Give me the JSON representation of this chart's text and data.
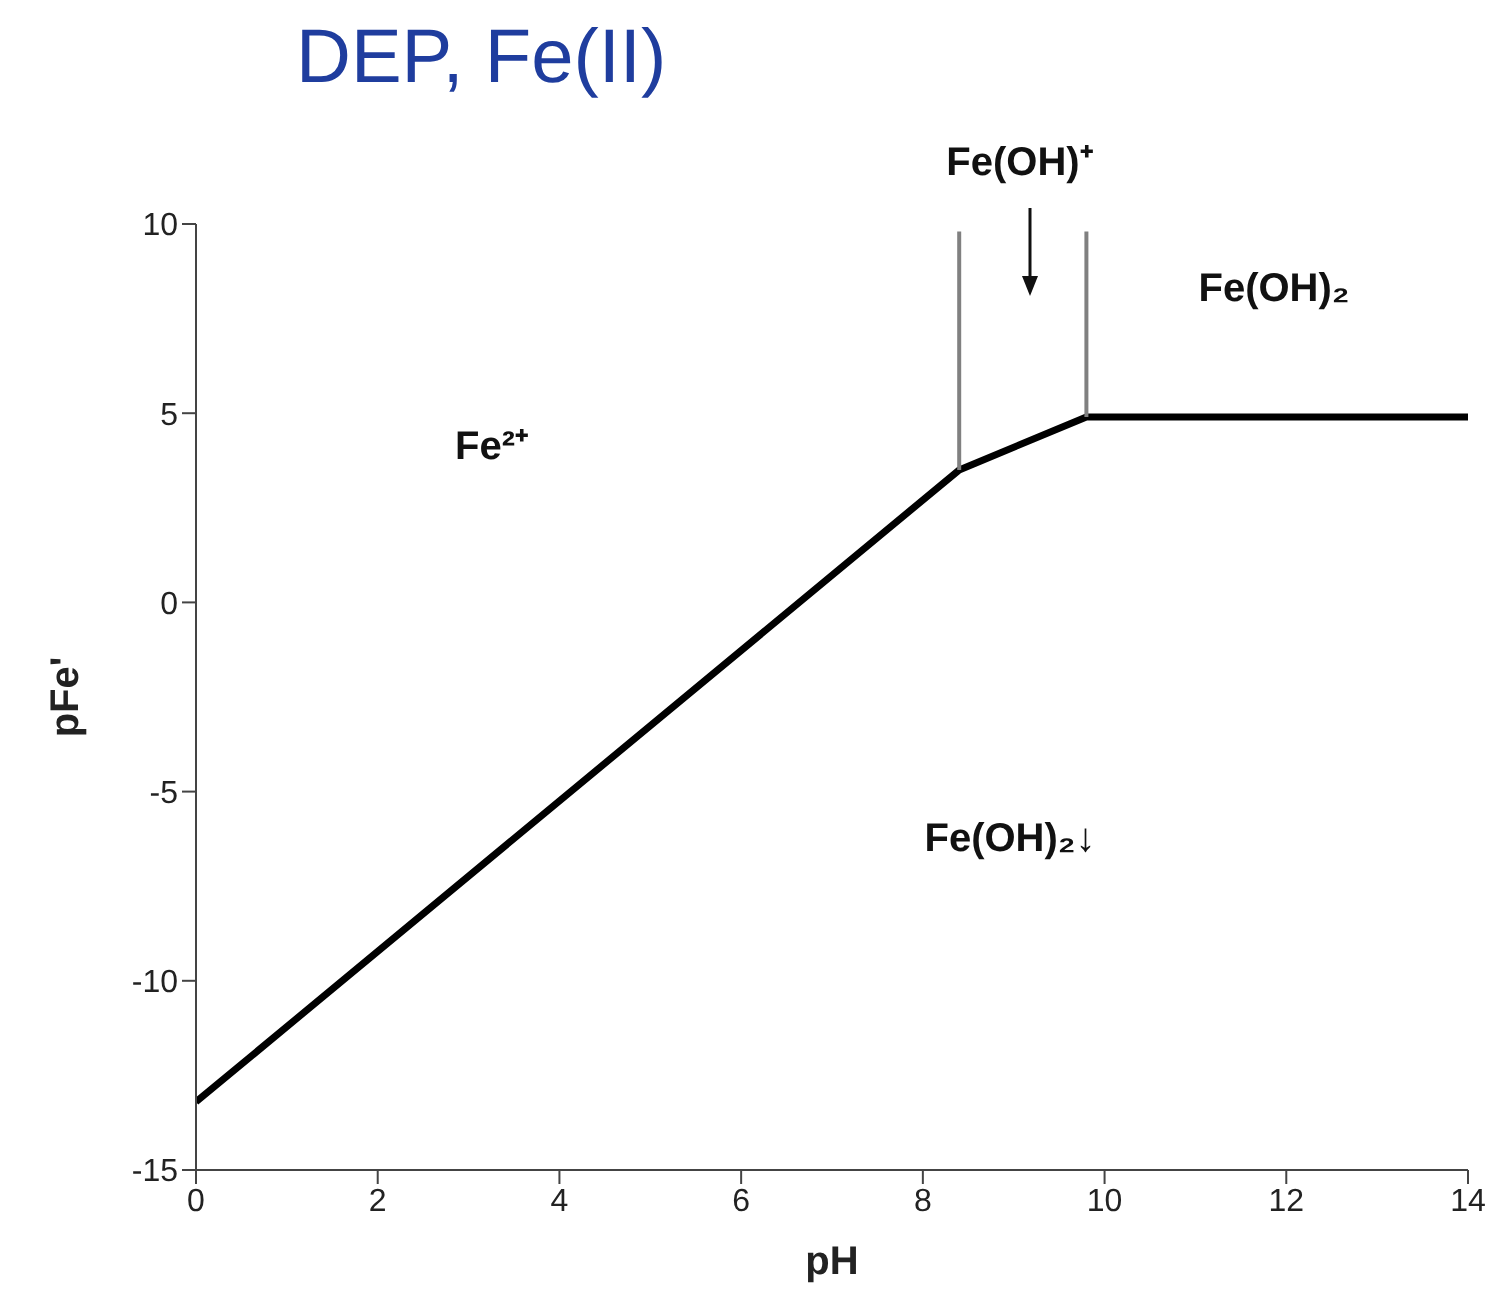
{
  "chart_data": {
    "type": "line",
    "title": "DEP, Fe(II)",
    "xlabel": "pH",
    "ylabel": "pFe'",
    "series": [
      {
        "color": "#000000",
        "x": [
          0,
          8.4,
          9.8,
          14
        ],
        "values": [
          -13.2,
          3.5,
          4.9,
          4.9
        ]
      },
      {
        "color": "#808080",
        "x": [
          8.4,
          8.4
        ],
        "values": [
          3.5,
          9.8
        ]
      },
      {
        "color": "#808080",
        "x": [
          9.8,
          9.8
        ],
        "values": [
          4.9,
          9.8
        ]
      }
    ],
    "annotations": [
      "Fe²⁺",
      "Fe(OH)⁺",
      "Fe(OH)₂",
      "Fe(OH)₂↓"
    ],
    "xlim": [
      0,
      14
    ],
    "xticks": [
      0,
      2,
      4,
      6,
      8,
      10,
      12,
      14
    ],
    "ylim": [
      -15,
      10
    ],
    "yticks": [
      -15,
      -10,
      -5,
      0,
      5,
      10
    ],
    "marker": "none",
    "line_style": "solid"
  }
}
